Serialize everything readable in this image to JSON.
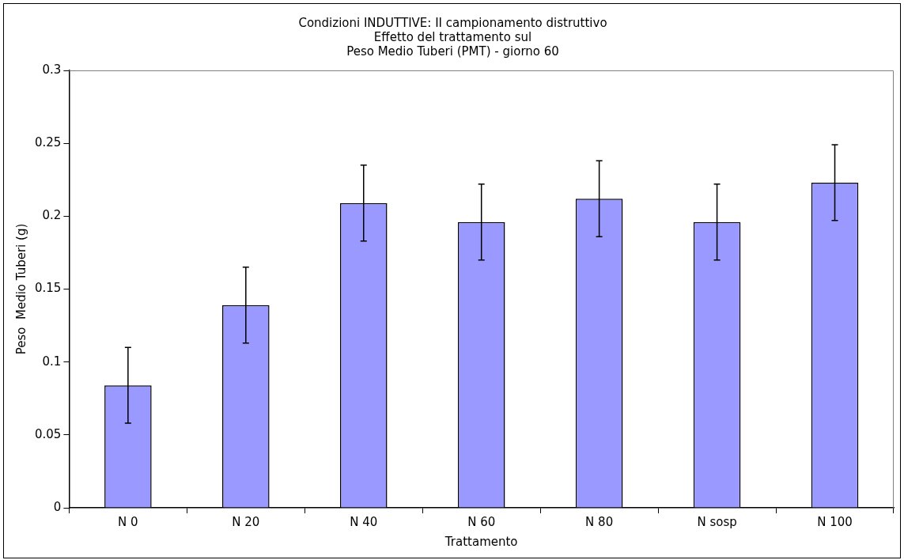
{
  "chart_data": {
    "type": "bar",
    "title": [
      "Condizioni INDUTTIVE: II campionamento distruttivo",
      "Effetto del trattamento sul",
      "Peso Medio Tuberi (PMT) - giorno 60"
    ],
    "xlabel": "Trattamento",
    "ylabel": "Peso  Medio Tuberi (g)",
    "categories": [
      "N 0",
      "N 20",
      "N 40",
      "N 60",
      "N 80",
      "N sosp",
      "N 100"
    ],
    "values": [
      0.084,
      0.139,
      0.209,
      0.196,
      0.212,
      0.196,
      0.223
    ],
    "errors": [
      0.026,
      0.026,
      0.026,
      0.026,
      0.026,
      0.026,
      0.026
    ],
    "color": "#9999ff",
    "ylim": [
      0,
      0.3
    ],
    "yticks": [
      0,
      0.05,
      0.1,
      0.15,
      0.2,
      0.25,
      0.3
    ],
    "grid": false,
    "legend": false
  }
}
